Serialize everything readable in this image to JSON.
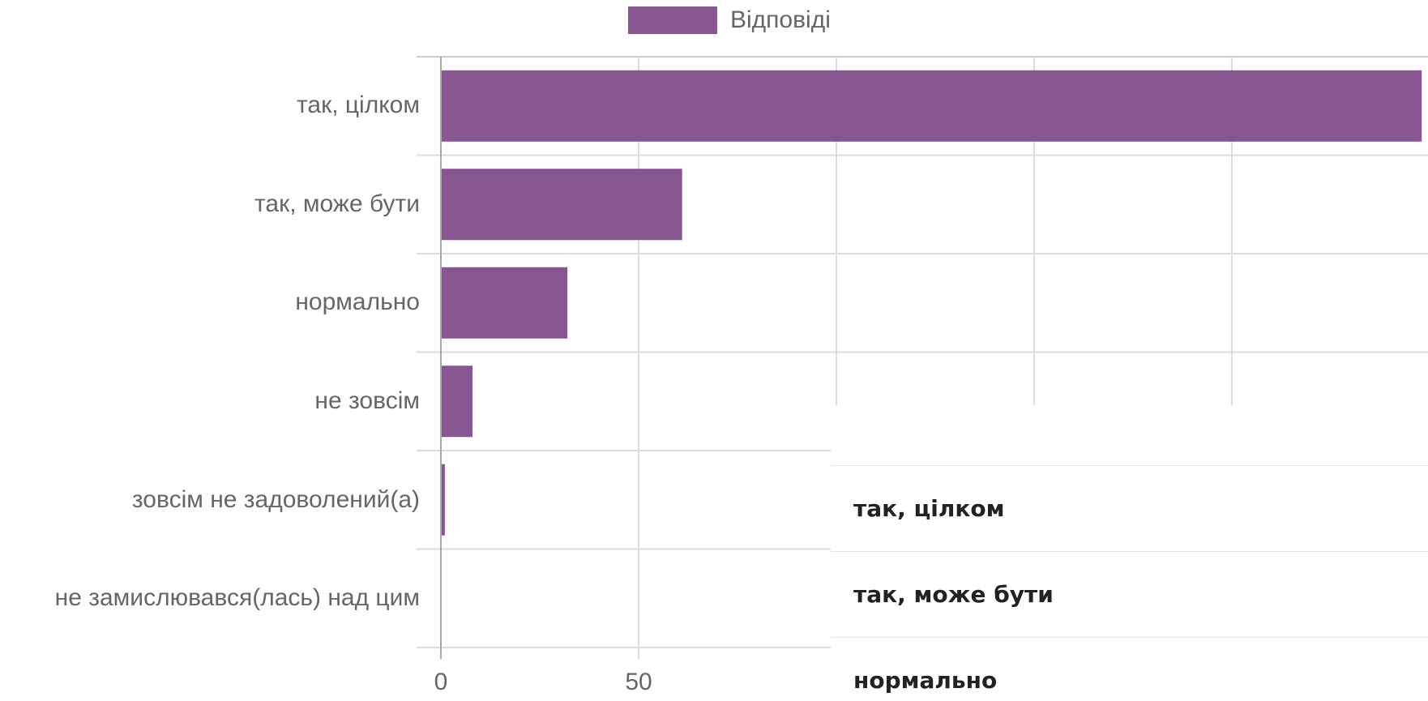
{
  "chart_data": {
    "type": "bar",
    "orientation": "horizontal",
    "categories": [
      "так, цілком",
      "так, може бути",
      "нормально",
      "не зовсім",
      "зовсім не задоволений(а)",
      "не замислювався(лась) над цим"
    ],
    "series": [
      {
        "name": "Відповіді",
        "values": [
          248,
          61,
          32,
          8,
          1,
          0
        ],
        "color": "#875592"
      }
    ],
    "xlim": [
      0,
      250
    ],
    "xticks_visible": [
      "0",
      "50"
    ],
    "grid": true,
    "legend": "top-center"
  },
  "table": {
    "rows": [
      "так, цілком",
      "так, може бути",
      "нормально"
    ]
  },
  "colors": {
    "bar": "#875592",
    "grid": "#dddddd",
    "axis": "#aaaaaa",
    "label": "#666666"
  }
}
